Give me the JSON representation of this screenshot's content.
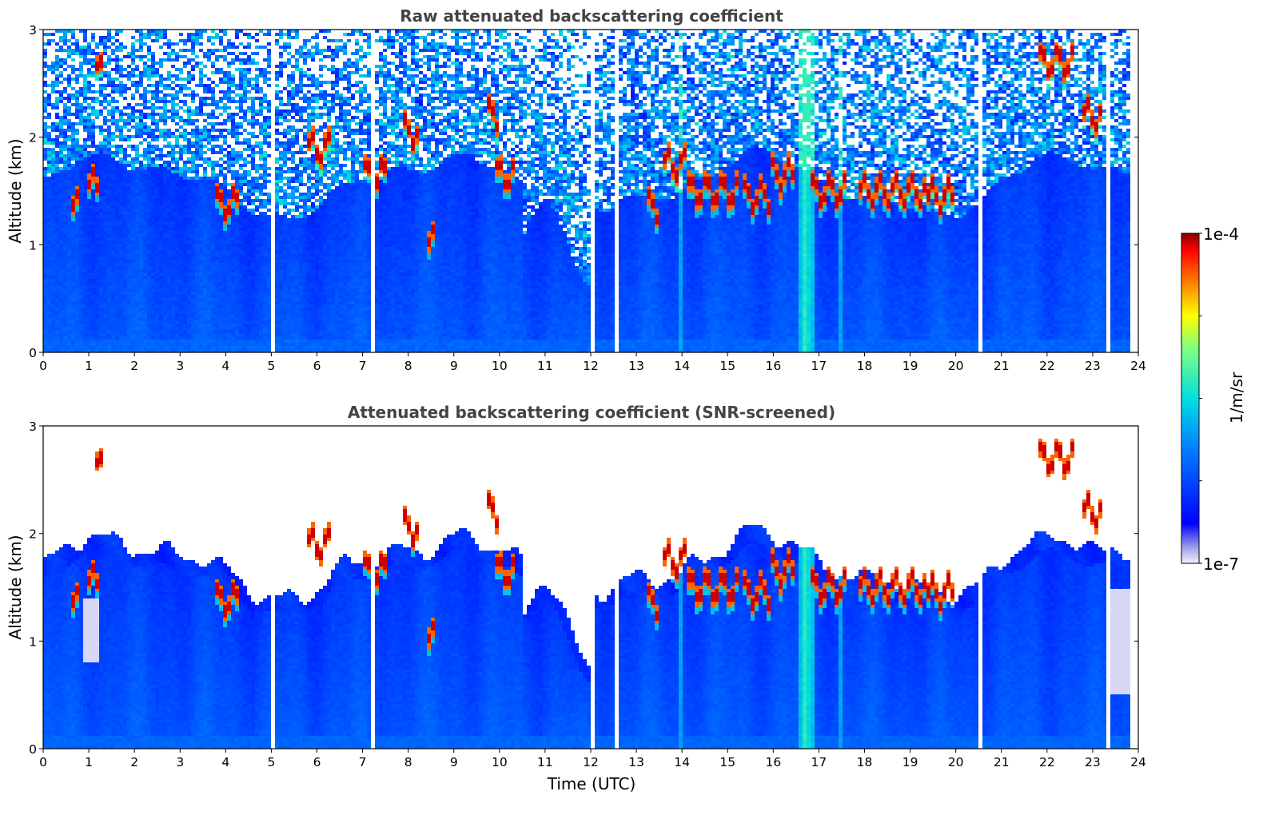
{
  "chart_data": [
    {
      "type": "heatmap",
      "title": "Raw attenuated backscattering coefficient",
      "xlabel": "",
      "ylabel": "Altitude (km)",
      "xlim": [
        0,
        24
      ],
      "ylim": [
        0,
        3
      ],
      "xticks": [
        "0",
        "1",
        "2",
        "3",
        "4",
        "5",
        "6",
        "7",
        "8",
        "9",
        "10",
        "11",
        "12",
        "13",
        "14",
        "15",
        "16",
        "17",
        "18",
        "19",
        "20",
        "21",
        "22",
        "23",
        "24"
      ],
      "yticks": [
        "0",
        "1",
        "2",
        "3"
      ],
      "screened": false
    },
    {
      "type": "heatmap",
      "title": "Attenuated backscattering coefficient (SNR-screened)",
      "xlabel": "Time (UTC)",
      "ylabel": "Altitude (km)",
      "xlim": [
        0,
        24
      ],
      "ylim": [
        0,
        3
      ],
      "xticks": [
        "0",
        "1",
        "2",
        "3",
        "4",
        "5",
        "6",
        "7",
        "8",
        "9",
        "10",
        "11",
        "12",
        "13",
        "14",
        "15",
        "16",
        "17",
        "18",
        "19",
        "20",
        "21",
        "22",
        "23",
        "24"
      ],
      "yticks": [
        "0",
        "1",
        "2",
        "3"
      ],
      "screened": true
    }
  ],
  "colorbar": {
    "label": "1/m/sr",
    "max_label": "1e-4",
    "min_label": "1e-7",
    "scale": "log",
    "range": [
      1e-07,
      0.0001
    ],
    "colormap": "jet"
  },
  "features": {
    "data_gaps_hours": [
      5.07,
      7.25,
      12.05,
      12.55,
      20.57,
      23.33
    ],
    "aerosol_plume_hours": [
      16.72
    ],
    "clouds": [
      {
        "t0": 0.65,
        "t1": 0.75,
        "alt": 1.35
      },
      {
        "t0": 1.0,
        "t1": 1.2,
        "alt": 1.55
      },
      {
        "t0": 1.15,
        "t1": 1.3,
        "alt": 2.6
      },
      {
        "t0": 3.75,
        "t1": 4.25,
        "alt": 1.38
      },
      {
        "t0": 5.8,
        "t1": 6.3,
        "alt": 1.9
      },
      {
        "t0": 7.0,
        "t1": 7.5,
        "alt": 1.65
      },
      {
        "t0": 7.85,
        "t1": 8.25,
        "alt": 2.05
      },
      {
        "t0": 8.45,
        "t1": 8.6,
        "alt": 1.02
      },
      {
        "t0": 9.7,
        "t1": 9.95,
        "alt": 2.2
      },
      {
        "t0": 9.9,
        "t1": 10.3,
        "alt": 1.65
      },
      {
        "t0": 13.2,
        "t1": 13.45,
        "alt": 1.35
      },
      {
        "t0": 13.6,
        "t1": 14.1,
        "alt": 1.75
      },
      {
        "t0": 14.1,
        "t1": 15.2,
        "alt": 1.5
      },
      {
        "t0": 15.3,
        "t1": 15.9,
        "alt": 1.45
      },
      {
        "t0": 15.9,
        "t1": 16.5,
        "alt": 1.65
      },
      {
        "t0": 16.8,
        "t1": 17.6,
        "alt": 1.5
      },
      {
        "t0": 17.9,
        "t1": 19.4,
        "alt": 1.5
      },
      {
        "t0": 19.4,
        "t1": 19.95,
        "alt": 1.45
      },
      {
        "t0": 21.8,
        "t1": 22.6,
        "alt": 2.7
      },
      {
        "t0": 22.8,
        "t1": 23.2,
        "alt": 2.2
      }
    ]
  }
}
